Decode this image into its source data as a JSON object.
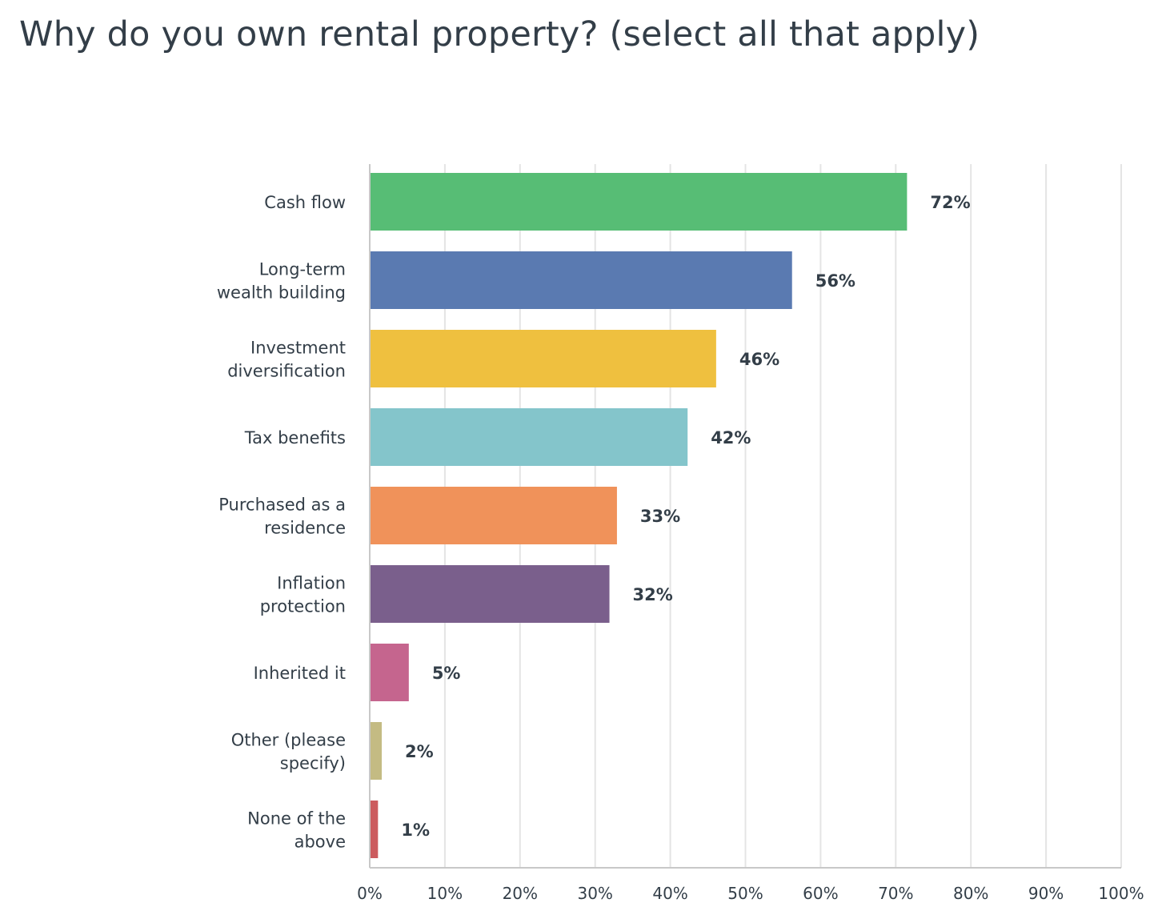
{
  "chart_data": {
    "type": "bar",
    "orientation": "horizontal",
    "title": "Why do you own rental property? (select all that apply)",
    "categories": [
      [
        "Cash flow"
      ],
      [
        "Long-term",
        "wealth building"
      ],
      [
        "Investment",
        "diversification"
      ],
      [
        "Tax benefits"
      ],
      [
        "Purchased as a",
        "residence"
      ],
      [
        "Inflation",
        "protection"
      ],
      [
        "Inherited it"
      ],
      [
        "Other (please",
        "specify)"
      ],
      [
        "None of the",
        "above"
      ]
    ],
    "values": [
      71.5,
      56.2,
      46.1,
      42.3,
      32.9,
      31.9,
      5.2,
      1.6,
      1.1
    ],
    "value_labels": [
      "72%",
      "56%",
      "46%",
      "42%",
      "33%",
      "32%",
      "5%",
      "2%",
      "1%"
    ],
    "colors": [
      "#57bd75",
      "#5a7ab1",
      "#efc03f",
      "#84c5cb",
      "#f0925a",
      "#7a5f8c",
      "#c5658e",
      "#c4bb83",
      "#cc5b5e"
    ],
    "xlim": [
      0,
      100
    ],
    "x_ticks": [
      0,
      10,
      20,
      30,
      40,
      50,
      60,
      70,
      80,
      90,
      100
    ],
    "x_tick_labels": [
      "0%",
      "10%",
      "20%",
      "30%",
      "40%",
      "50%",
      "60%",
      "70%",
      "80%",
      "90%",
      "100%"
    ],
    "grid": true,
    "xlabel": "",
    "ylabel": ""
  }
}
